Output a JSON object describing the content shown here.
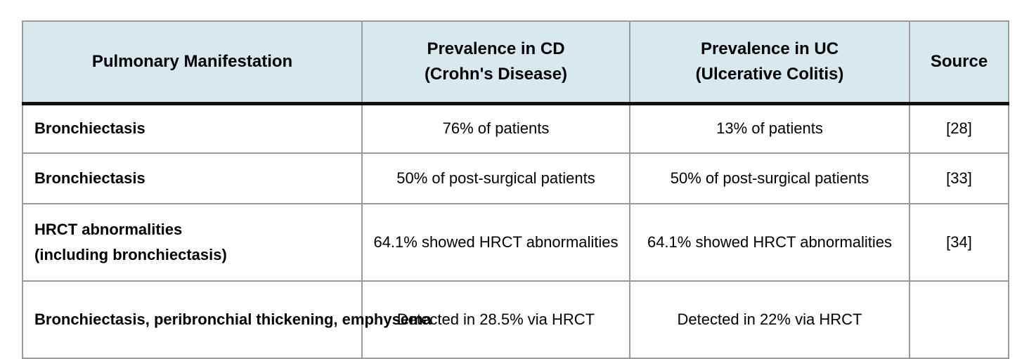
{
  "table": {
    "columns": [
      {
        "label": "Pulmonary Manifestation"
      },
      {
        "label": "Prevalence in CD\n(Crohn's Disease)"
      },
      {
        "label": "Prevalence in UC\n(Ulcerative Colitis)"
      },
      {
        "label": "Source"
      }
    ],
    "rows": [
      {
        "manifestation": "Bronchiectasis",
        "cd": "76% of patients",
        "uc": "13% of patients",
        "source": "[28]"
      },
      {
        "manifestation": "Bronchiectasis",
        "cd": "50% of post-surgical patients",
        "uc": "50% of post-surgical patients",
        "source": "[33]"
      },
      {
        "manifestation": "HRCT abnormalities\n(including bronchiectasis)",
        "cd": "64.1% showed HRCT abnormalities",
        "uc": "64.1% showed HRCT abnormalities",
        "source": "[34]"
      },
      {
        "manifestation": "Bronchiectasis, peribronchial thickening, emphysema",
        "cd": "Detected in 28.5% via HRCT",
        "uc": "Detected in 22% via HRCT",
        "source": ""
      }
    ]
  },
  "colors": {
    "header_bg": "#d7e8ee",
    "grid": "#9a9a9a",
    "header_rule": "#121212"
  }
}
